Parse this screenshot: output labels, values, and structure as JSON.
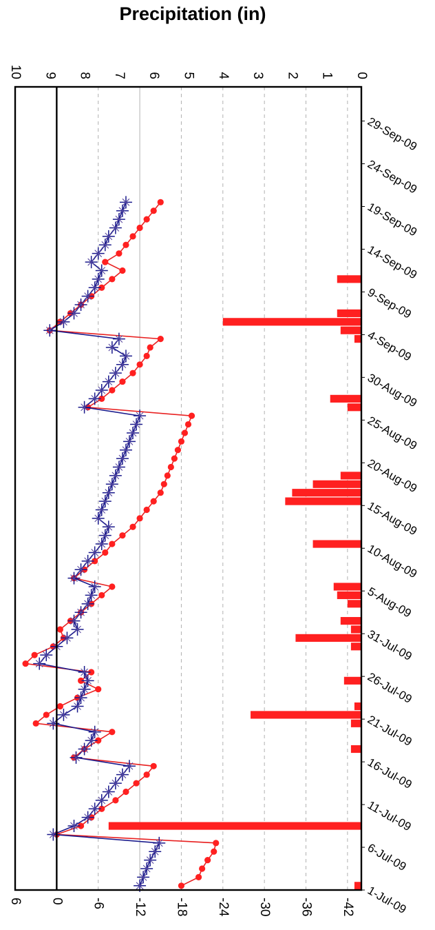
{
  "title": "Precipitation (in)",
  "colors": {
    "precip": "#ff2020",
    "red_series": "#ff2020",
    "blue_series": "#1a1a8c"
  },
  "chart_data": {
    "type": "bar+line",
    "orientation": "rotated-90-clockwise",
    "title": "Precipitation (in)",
    "xlabel": "",
    "ylabel": "",
    "date_ticks": [
      "1-Jul-09",
      "6-Jul-09",
      "11-Jul-09",
      "16-Jul-09",
      "21-Jul-09",
      "26-Jul-09",
      "31-Jul-09",
      "5-Aug-09",
      "10-Aug-09",
      "15-Aug-09",
      "20-Aug-09",
      "25-Aug-09",
      "30-Aug-09",
      "4-Sep-09",
      "9-Sep-09",
      "14-Sep-09",
      "19-Sep-09",
      "24-Sep-09",
      "29-Sep-09"
    ],
    "date_range": [
      "2009-07-01",
      "2009-10-03"
    ],
    "left_axis": {
      "ticks": [
        6,
        0,
        -6,
        -12,
        -18,
        -24,
        -30,
        -36,
        -42
      ],
      "range": [
        -44,
        6
      ]
    },
    "right_axis": {
      "label": "Precipitation (in)",
      "ticks": [
        10,
        9,
        8,
        7,
        6,
        5,
        4,
        3,
        2,
        1,
        0
      ],
      "range": [
        0,
        10
      ]
    },
    "zero_line": 0,
    "grid": "dashed-horizontal",
    "precipitation_bars": [
      {
        "date": "2009-07-01",
        "value": 0.2
      },
      {
        "date": "2009-07-08",
        "value": 7.3
      },
      {
        "date": "2009-07-17",
        "value": 0.3
      },
      {
        "date": "2009-07-20",
        "value": 0.3
      },
      {
        "date": "2009-07-21",
        "value": 3.2
      },
      {
        "date": "2009-07-22",
        "value": 0.2
      },
      {
        "date": "2009-07-25",
        "value": 0.5
      },
      {
        "date": "2009-07-29",
        "value": 0.3
      },
      {
        "date": "2009-07-30",
        "value": 1.9
      },
      {
        "date": "2009-07-31",
        "value": 0.3
      },
      {
        "date": "2009-08-01",
        "value": 0.6
      },
      {
        "date": "2009-08-03",
        "value": 0.4
      },
      {
        "date": "2009-08-04",
        "value": 0.7
      },
      {
        "date": "2009-08-05",
        "value": 0.8
      },
      {
        "date": "2009-08-10",
        "value": 1.4
      },
      {
        "date": "2009-08-15",
        "value": 2.2
      },
      {
        "date": "2009-08-16",
        "value": 2.0
      },
      {
        "date": "2009-08-17",
        "value": 1.4
      },
      {
        "date": "2009-08-18",
        "value": 0.6
      },
      {
        "date": "2009-08-26",
        "value": 0.4
      },
      {
        "date": "2009-08-27",
        "value": 0.9
      },
      {
        "date": "2009-09-03",
        "value": 0.2
      },
      {
        "date": "2009-09-04",
        "value": 0.6
      },
      {
        "date": "2009-09-05",
        "value": 4.0
      },
      {
        "date": "2009-09-06",
        "value": 0.7
      },
      {
        "date": "2009-09-10",
        "value": 0.7
      }
    ],
    "series": [
      {
        "color": "red",
        "marker": "circle",
        "points": [
          [
            "2009-07-01",
            -18
          ],
          [
            "2009-07-02",
            -20.5
          ],
          [
            "2009-07-03",
            -21
          ],
          [
            "2009-07-04",
            -21.8
          ],
          [
            "2009-07-05",
            -22.7
          ],
          [
            "2009-07-06",
            -23
          ],
          [
            "2009-07-07",
            0
          ],
          [
            "2009-07-08",
            -3.5
          ],
          [
            "2009-07-09",
            -5
          ],
          [
            "2009-07-10",
            -6.5
          ],
          [
            "2009-07-11",
            -8.5
          ],
          [
            "2009-07-12",
            -10
          ],
          [
            "2009-07-13",
            -11.5
          ],
          [
            "2009-07-14",
            -13
          ],
          [
            "2009-07-15",
            -14
          ],
          [
            "2009-07-16",
            -2.5
          ],
          [
            "2009-07-17",
            -4
          ],
          [
            "2009-07-18",
            -6
          ],
          [
            "2009-07-19",
            -8
          ],
          [
            "2009-07-20",
            3
          ],
          [
            "2009-07-21",
            1.5
          ],
          [
            "2009-07-22",
            -0.5
          ],
          [
            "2009-07-23",
            -3
          ],
          [
            "2009-07-24",
            -6
          ],
          [
            "2009-07-25",
            -3.5
          ],
          [
            "2009-07-26",
            -5
          ],
          [
            "2009-07-27",
            4.5
          ],
          [
            "2009-07-28",
            3.2
          ],
          [
            "2009-07-29",
            0.5
          ],
          [
            "2009-07-30",
            -1
          ],
          [
            "2009-07-31",
            -0.5
          ],
          [
            "2009-08-01",
            -2
          ],
          [
            "2009-08-02",
            -3.5
          ],
          [
            "2009-08-03",
            -5
          ],
          [
            "2009-08-04",
            -6.5
          ],
          [
            "2009-08-05",
            -8
          ],
          [
            "2009-08-06",
            -2.5
          ],
          [
            "2009-08-07",
            -4
          ],
          [
            "2009-08-08",
            -5.5
          ],
          [
            "2009-08-09",
            -7
          ],
          [
            "2009-08-10",
            -8
          ],
          [
            "2009-08-11",
            -9.5
          ],
          [
            "2009-08-12",
            -11
          ],
          [
            "2009-08-13",
            -12
          ],
          [
            "2009-08-14",
            -13
          ],
          [
            "2009-08-15",
            -14
          ],
          [
            "2009-08-16",
            -15
          ],
          [
            "2009-08-17",
            -15.5
          ],
          [
            "2009-08-18",
            -16
          ],
          [
            "2009-08-19",
            -16.5
          ],
          [
            "2009-08-20",
            -17
          ],
          [
            "2009-08-21",
            -17.5
          ],
          [
            "2009-08-22",
            -18
          ],
          [
            "2009-08-23",
            -18.5
          ],
          [
            "2009-08-24",
            -19
          ],
          [
            "2009-08-25",
            -19.5
          ],
          [
            "2009-08-26",
            -4.5
          ],
          [
            "2009-08-27",
            -6.5
          ],
          [
            "2009-08-28",
            -8
          ],
          [
            "2009-08-29",
            -9.5
          ],
          [
            "2009-08-30",
            -11
          ],
          [
            "2009-08-31",
            -12
          ],
          [
            "2009-09-01",
            -13
          ],
          [
            "2009-09-02",
            -13.5
          ],
          [
            "2009-09-03",
            -15
          ],
          [
            "2009-09-04",
            1
          ],
          [
            "2009-09-05",
            -0.5
          ],
          [
            "2009-09-06",
            -2
          ],
          [
            "2009-09-07",
            -3.5
          ],
          [
            "2009-09-08",
            -5
          ],
          [
            "2009-09-09",
            -6.5
          ],
          [
            "2009-09-10",
            -8
          ],
          [
            "2009-09-11",
            -9.5
          ],
          [
            "2009-09-12",
            -7
          ],
          [
            "2009-09-13",
            -9
          ],
          [
            "2009-09-14",
            -10
          ],
          [
            "2009-09-15",
            -11
          ],
          [
            "2009-09-16",
            -12
          ],
          [
            "2009-09-17",
            -13
          ],
          [
            "2009-09-18",
            -14
          ],
          [
            "2009-09-19",
            -15
          ]
        ]
      },
      {
        "color": "blue",
        "marker": "plus-cross",
        "points": [
          [
            "2009-07-01",
            -12
          ],
          [
            "2009-07-02",
            -12.5
          ],
          [
            "2009-07-03",
            -13
          ],
          [
            "2009-07-04",
            -13.5
          ],
          [
            "2009-07-05",
            -14.2
          ],
          [
            "2009-07-06",
            -14.8
          ],
          [
            "2009-07-07",
            0.5
          ],
          [
            "2009-07-08",
            -2.5
          ],
          [
            "2009-07-09",
            -4.5
          ],
          [
            "2009-07-10",
            -5.5
          ],
          [
            "2009-07-11",
            -6.5
          ],
          [
            "2009-07-12",
            -7.5
          ],
          [
            "2009-07-13",
            -8.5
          ],
          [
            "2009-07-14",
            -9.5
          ],
          [
            "2009-07-15",
            -10.5
          ],
          [
            "2009-07-16",
            -2.8
          ],
          [
            "2009-07-17",
            -4
          ],
          [
            "2009-07-18",
            -5
          ],
          [
            "2009-07-19",
            -5.5
          ],
          [
            "2009-07-20",
            0.5
          ],
          [
            "2009-07-21",
            -1
          ],
          [
            "2009-07-22",
            -3
          ],
          [
            "2009-07-23",
            -3.5
          ],
          [
            "2009-07-24",
            -4
          ],
          [
            "2009-07-25",
            -4.5
          ],
          [
            "2009-07-26",
            -4
          ],
          [
            "2009-07-27",
            2.5
          ],
          [
            "2009-07-28",
            1.5
          ],
          [
            "2009-07-29",
            0
          ],
          [
            "2009-07-30",
            -1.5
          ],
          [
            "2009-07-31",
            -3
          ],
          [
            "2009-08-01",
            -2.5
          ],
          [
            "2009-08-02",
            -3.5
          ],
          [
            "2009-08-03",
            -4.5
          ],
          [
            "2009-08-04",
            -5
          ],
          [
            "2009-08-05",
            -5.5
          ],
          [
            "2009-08-06",
            -2.5
          ],
          [
            "2009-08-07",
            -3.5
          ],
          [
            "2009-08-08",
            -4.5
          ],
          [
            "2009-08-09",
            -5.5
          ],
          [
            "2009-08-10",
            -6.5
          ],
          [
            "2009-08-11",
            -7
          ],
          [
            "2009-08-12",
            -7.5
          ],
          [
            "2009-08-13",
            -6
          ],
          [
            "2009-08-14",
            -6.5
          ],
          [
            "2009-08-15",
            -7
          ],
          [
            "2009-08-16",
            -7.5
          ],
          [
            "2009-08-17",
            -8
          ],
          [
            "2009-08-18",
            -8.5
          ],
          [
            "2009-08-19",
            -9
          ],
          [
            "2009-08-20",
            -9.5
          ],
          [
            "2009-08-21",
            -10
          ],
          [
            "2009-08-22",
            -10.5
          ],
          [
            "2009-08-23",
            -11
          ],
          [
            "2009-08-24",
            -11.5
          ],
          [
            "2009-08-25",
            -12
          ],
          [
            "2009-08-26",
            -4
          ],
          [
            "2009-08-27",
            -5.5
          ],
          [
            "2009-08-28",
            -6.5
          ],
          [
            "2009-08-29",
            -7.5
          ],
          [
            "2009-08-30",
            -8.5
          ],
          [
            "2009-08-31",
            -9.5
          ],
          [
            "2009-09-01",
            -10
          ],
          [
            "2009-09-02",
            -8
          ],
          [
            "2009-09-03",
            -9
          ],
          [
            "2009-09-04",
            1
          ],
          [
            "2009-09-05",
            -1
          ],
          [
            "2009-09-06",
            -2.5
          ],
          [
            "2009-09-07",
            -3.5
          ],
          [
            "2009-09-08",
            -4.5
          ],
          [
            "2009-09-09",
            -5.5
          ],
          [
            "2009-09-10",
            -6
          ],
          [
            "2009-09-11",
            -6.5
          ],
          [
            "2009-09-12",
            -5
          ],
          [
            "2009-09-13",
            -6
          ],
          [
            "2009-09-14",
            -7
          ],
          [
            "2009-09-15",
            -7.5
          ],
          [
            "2009-09-16",
            -8.5
          ],
          [
            "2009-09-17",
            -9
          ],
          [
            "2009-09-18",
            -9.5
          ],
          [
            "2009-09-19",
            -10
          ]
        ]
      }
    ]
  }
}
